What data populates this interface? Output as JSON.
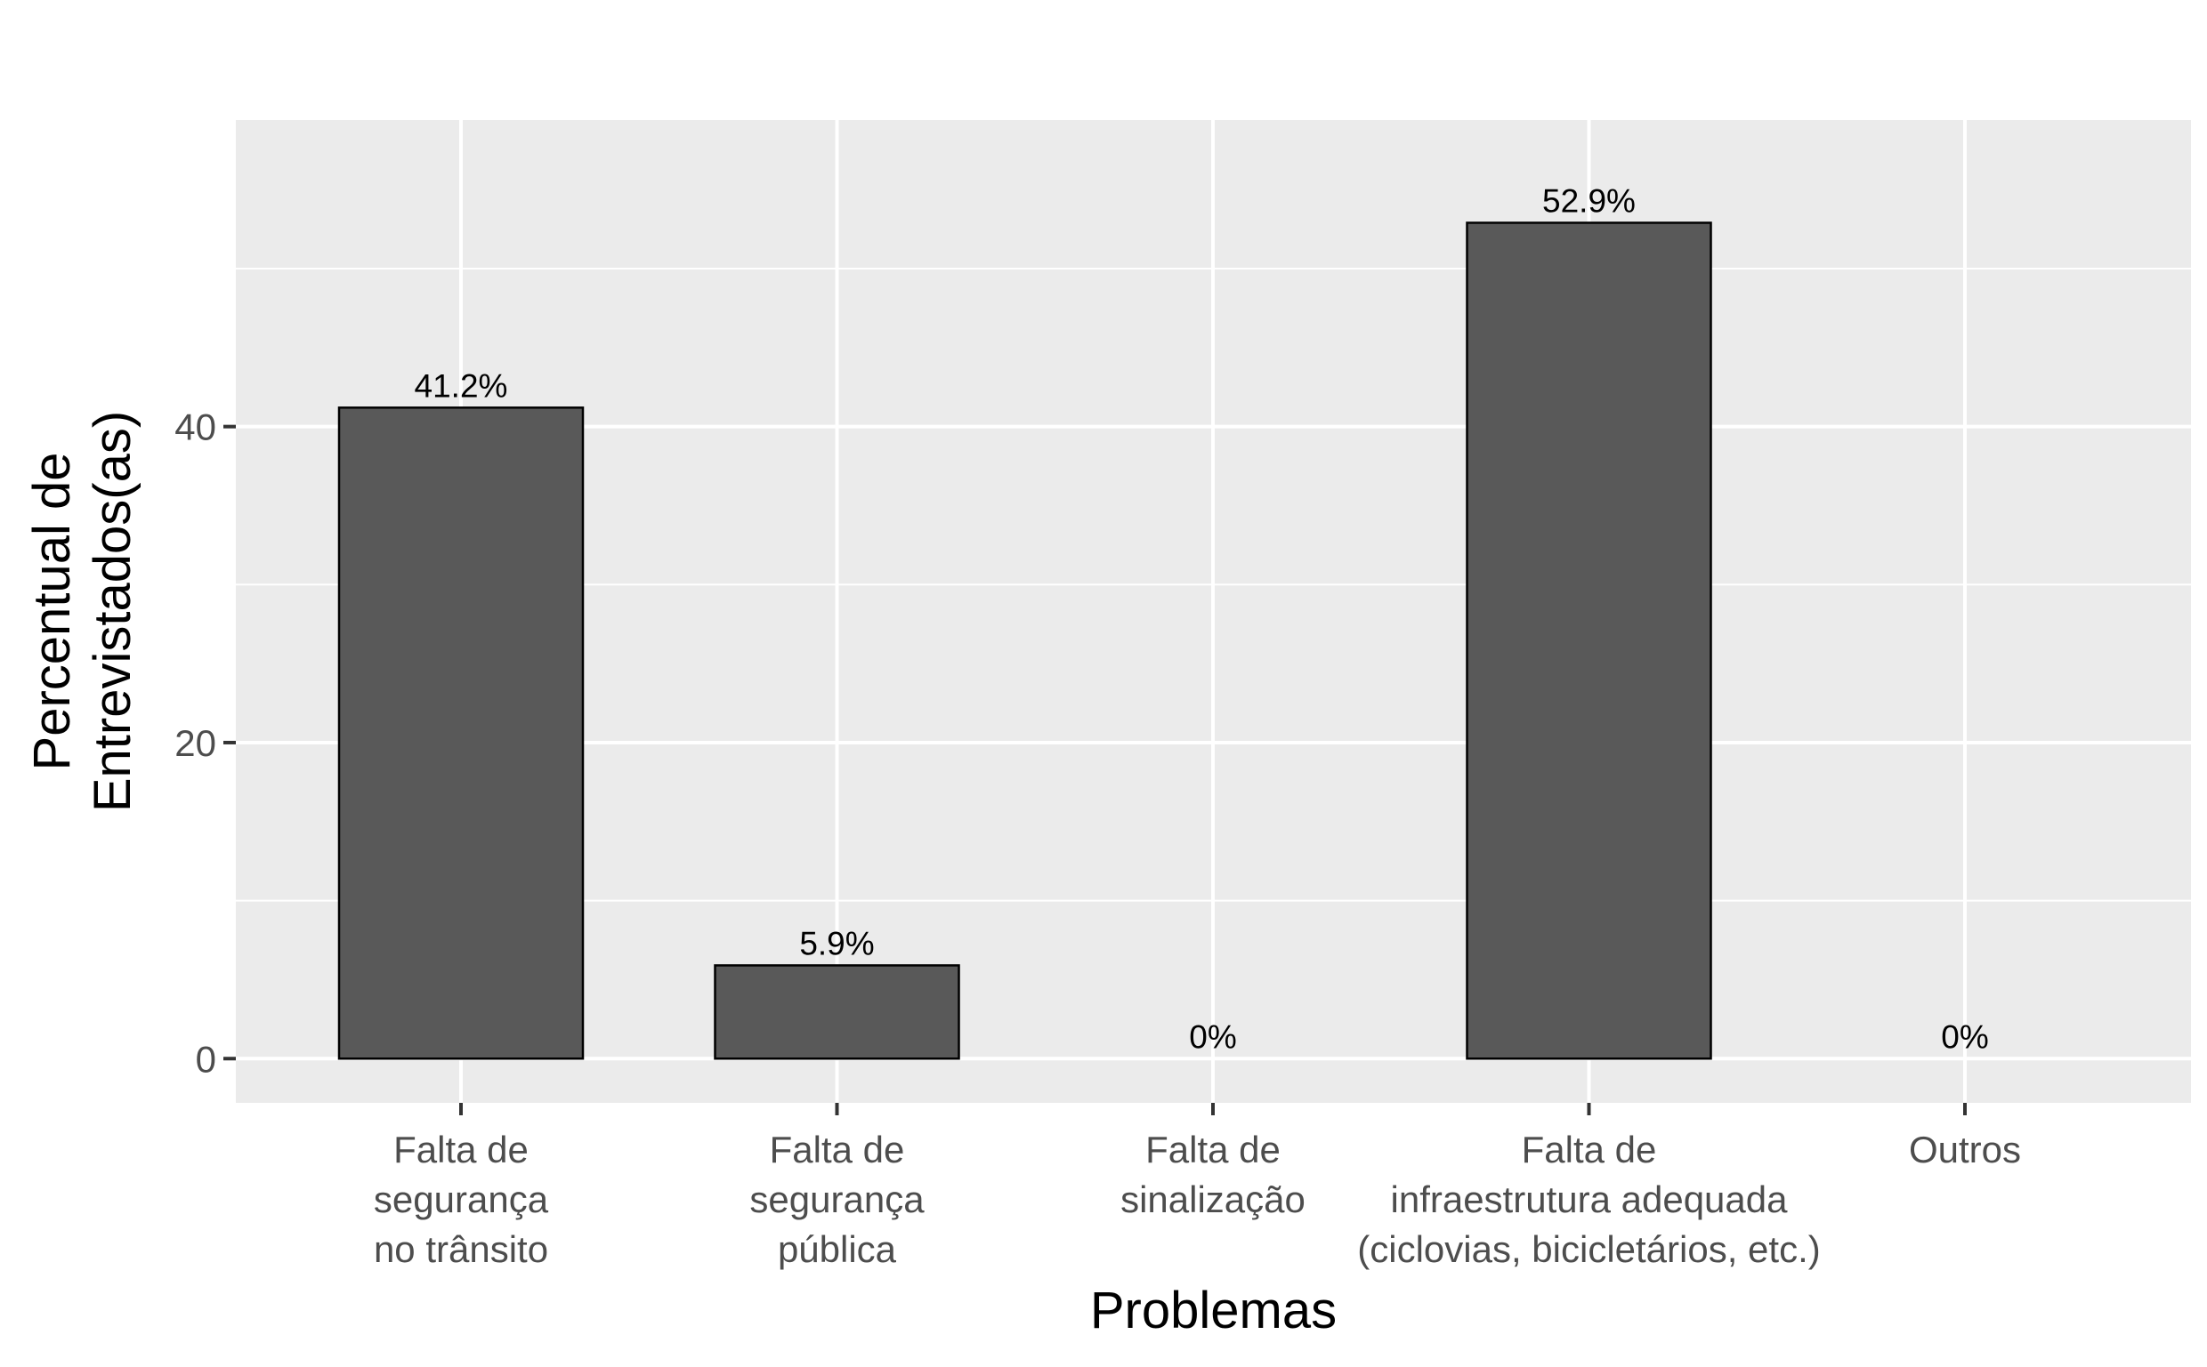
{
  "chart_data": {
    "type": "bar",
    "categories": [
      [
        "Falta de",
        "segurança",
        "no trânsito"
      ],
      [
        "Falta de",
        "segurança",
        "pública"
      ],
      [
        "Falta de",
        "sinalização"
      ],
      [
        "Falta de",
        "infraestrutura adequada",
        "(ciclovias, bicicletários, etc.)"
      ],
      [
        "Outros"
      ]
    ],
    "values": [
      41.2,
      5.9,
      0,
      52.9,
      0
    ],
    "data_labels": [
      "41.2%",
      "5.9%",
      "0%",
      "52.9%",
      "0%"
    ],
    "title": "",
    "xlabel": "Problemas",
    "ylabel": [
      "Percentual de",
      "Entrevistados(as)"
    ],
    "ylim": [
      -2.8,
      59.4
    ],
    "yticks": [
      0,
      20,
      40
    ],
    "ytick_labels": [
      "0",
      "20",
      "40"
    ],
    "grid": true,
    "colors": {
      "bar_fill": "#595959",
      "bar_stroke": "#000000",
      "panel_bg": "#ebebeb",
      "grid": "#ffffff"
    }
  }
}
